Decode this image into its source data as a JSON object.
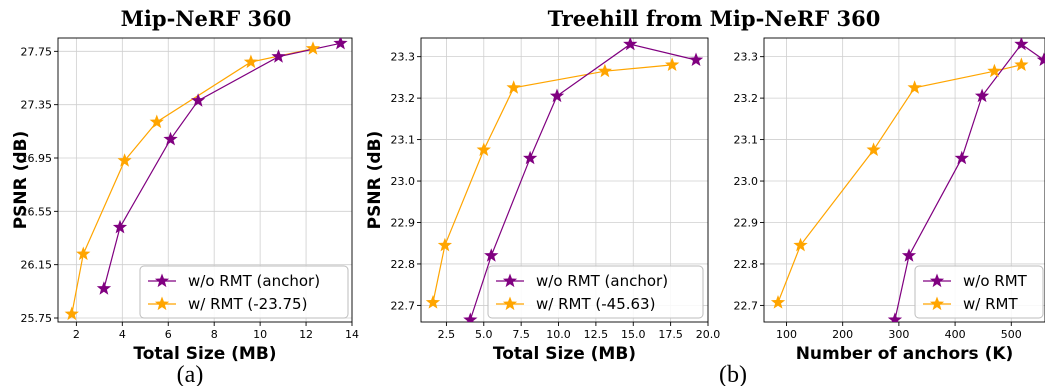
{
  "titles": {
    "left": "Mip-NeRF 360",
    "right": "Treehill from Mip-NeRF 360"
  },
  "captions": {
    "a": "(a)",
    "b": "(b)"
  },
  "colors": {
    "anchor": "#800080",
    "rmt": "#FFA500"
  },
  "chart_data": [
    {
      "type": "line",
      "xlabel": "Total Size (MB)",
      "ylabel": "PSNR (dB)",
      "xlim": [
        1.2,
        14
      ],
      "ylim": [
        25.72,
        27.85
      ],
      "xticks": [
        2,
        4,
        6,
        8,
        10,
        12,
        14
      ],
      "yticks": [
        25.75,
        26.15,
        26.55,
        26.95,
        27.35,
        27.75
      ],
      "ytick_labels": [
        "25.75",
        "26.15",
        "26.55",
        "26.95",
        "27.35",
        "27.75"
      ],
      "grid": true,
      "legend_position": "bottom-right",
      "marker": "star",
      "series": [
        {
          "name": "w/o RMT (anchor)",
          "color": "#800080",
          "x": [
            3.2,
            3.9,
            6.1,
            7.3,
            10.8,
            13.5
          ],
          "y": [
            25.97,
            26.43,
            27.09,
            27.38,
            27.71,
            27.81
          ]
        },
        {
          "name": "w/ RMT (-23.75)",
          "color": "#FFA500",
          "x": [
            1.8,
            2.3,
            4.1,
            5.5,
            9.6,
            12.3
          ],
          "y": [
            25.78,
            26.23,
            26.93,
            27.22,
            27.67,
            27.77
          ]
        }
      ]
    },
    {
      "type": "line",
      "xlabel": "Total Size (MB)",
      "ylabel": "PSNR (dB)",
      "xlim": [
        0.8,
        20
      ],
      "ylim": [
        22.66,
        23.345
      ],
      "xticks": [
        2.5,
        5.0,
        7.5,
        10.0,
        12.5,
        15.0,
        17.5,
        20.0
      ],
      "xtick_labels": [
        "2.5",
        "5.0",
        "7.5",
        "10.0",
        "12.5",
        "15.0",
        "17.5",
        "20.0"
      ],
      "yticks": [
        22.7,
        22.8,
        22.9,
        23.0,
        23.1,
        23.2,
        23.3
      ],
      "ytick_labels": [
        "22.7",
        "22.8",
        "22.9",
        "23.0",
        "23.1",
        "23.2",
        "23.3"
      ],
      "grid": true,
      "legend_position": "bottom-right",
      "marker": "star",
      "series": [
        {
          "name": "w/o RMT (anchor)",
          "color": "#800080",
          "x": [
            4.1,
            5.5,
            8.1,
            9.9,
            14.8,
            19.2
          ],
          "y": [
            22.665,
            22.82,
            23.055,
            23.205,
            23.33,
            23.292
          ]
        },
        {
          "name": "w/ RMT (-45.63)",
          "color": "#FFA500",
          "x": [
            1.6,
            2.4,
            5.0,
            7.0,
            13.1,
            17.6
          ],
          "y": [
            22.707,
            22.845,
            23.075,
            23.225,
            23.265,
            23.28
          ]
        }
      ]
    },
    {
      "type": "line",
      "xlabel": "Number of anchors (K)",
      "ylabel": "",
      "xlim": [
        60,
        560
      ],
      "ylim": [
        22.66,
        23.345
      ],
      "xticks": [
        100,
        200,
        300,
        400,
        500
      ],
      "yticks": [
        22.7,
        22.8,
        22.9,
        23.0,
        23.1,
        23.2,
        23.3
      ],
      "ytick_labels": [
        "22.7",
        "22.8",
        "22.9",
        "23.0",
        "23.1",
        "23.2",
        "23.3"
      ],
      "grid": true,
      "legend_position": "bottom-right",
      "marker": "star",
      "series": [
        {
          "name": "w/o RMT",
          "color": "#800080",
          "x": [
            293,
            318,
            412,
            448,
            518,
            558
          ],
          "y": [
            22.665,
            22.82,
            23.055,
            23.205,
            23.33,
            23.292
          ]
        },
        {
          "name": "w/ RMT",
          "color": "#FFA500",
          "x": [
            85,
            125,
            255,
            328,
            470,
            518
          ],
          "y": [
            22.707,
            22.845,
            23.075,
            23.225,
            23.265,
            23.28
          ]
        }
      ]
    }
  ]
}
